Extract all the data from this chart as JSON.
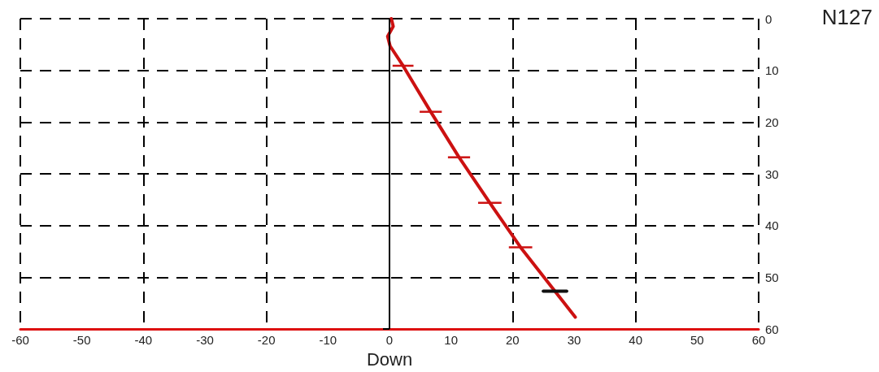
{
  "chart_data": {
    "type": "line",
    "xlabel": "Down",
    "annotations": [
      "N127"
    ],
    "xlim": [
      -60,
      60
    ],
    "xticks": [
      -60,
      -50,
      -40,
      -30,
      -20,
      -10,
      0,
      10,
      20,
      30,
      40,
      50,
      60
    ],
    "ylim": [
      60,
      0
    ],
    "yticks": [
      0,
      10,
      20,
      30,
      40,
      50,
      60
    ],
    "grid": true,
    "marker": "none",
    "line_style": "solid",
    "ref_lines": [
      {
        "axis": "x",
        "value": 0,
        "color": "#000000",
        "line_style": "solid"
      }
    ],
    "series": [
      {
        "color": "#cc1111",
        "x": [
          0.3,
          0.6,
          -0.3,
          0.1,
          2.2,
          6.7,
          11.3,
          16.3,
          21.3,
          30.2
        ],
        "values": [
          0,
          1.5,
          3.4,
          5.3,
          9.1,
          18,
          26.8,
          35.6,
          44.2,
          57.7
        ],
        "xerrors": [
          null,
          null,
          null,
          null,
          1.7,
          1.8,
          1.8,
          1.9,
          1.9,
          null
        ]
      },
      {
        "color": "#111111",
        "x": [
          25.0,
          28.8
        ],
        "values": [
          52.7,
          52.7
        ]
      }
    ]
  }
}
